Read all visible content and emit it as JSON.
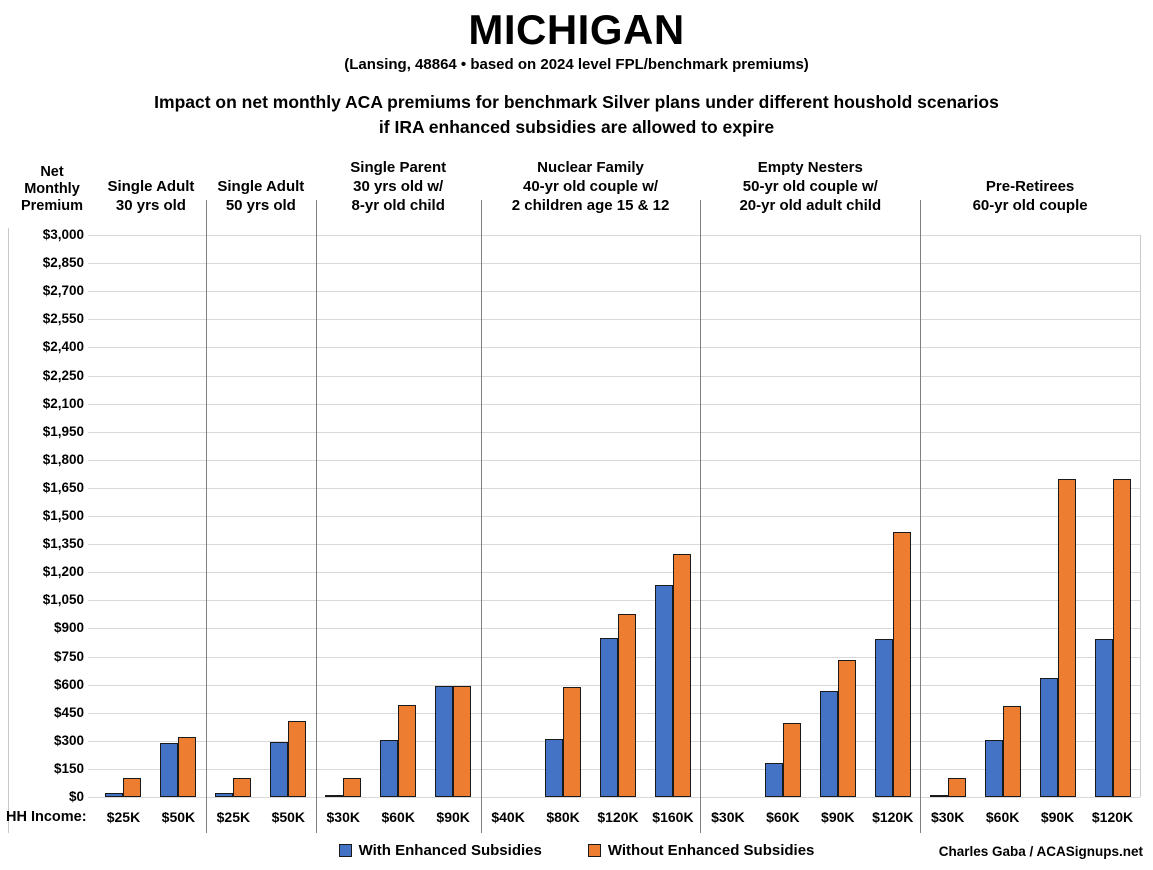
{
  "header": {
    "title": "MICHIGAN",
    "subtitle": "(Lansing, 48864 • based on 2024 level FPL/benchmark premiums)",
    "description_line1": "Impact on net monthly ACA premiums for benchmark Silver plans under different houshold scenarios",
    "description_line2": "if IRA enhanced subsidies are allowed to expire"
  },
  "credit": "Charles Gaba / ACASignups.net",
  "chart_data": {
    "type": "bar",
    "title": "MICHIGAN",
    "subtitle": "(Lansing, 48864 • based on 2024 level FPL/benchmark premiums)",
    "y_axis": {
      "header_lines": [
        "Net",
        "Monthly",
        "Premium"
      ],
      "min": 0,
      "max": 3000,
      "step": 150,
      "tick_prefix": "$",
      "grid": true
    },
    "x_axis_label": "HH Income:",
    "series": [
      {
        "name": "With Enhanced Subsidies",
        "color": "#4472C4"
      },
      {
        "name": "Without Enhanced Subsidies",
        "color": "#ED7D31"
      }
    ],
    "legend_position": "bottom-center",
    "groups": [
      {
        "header_lines": [
          "Single Adult",
          "30 yrs old"
        ],
        "incomes": [
          "$25K",
          "$50K"
        ],
        "with_enhanced": [
          20,
          290
        ],
        "without_enhanced": [
          100,
          320
        ]
      },
      {
        "header_lines": [
          "Single Adult",
          "50 yrs old"
        ],
        "incomes": [
          "$25K",
          "$50K"
        ],
        "with_enhanced": [
          20,
          295
        ],
        "without_enhanced": [
          100,
          405
        ]
      },
      {
        "header_lines": [
          "Single Parent",
          "30 yrs old w/",
          "8-yr old child"
        ],
        "incomes": [
          "$30K",
          "$60K",
          "$90K"
        ],
        "with_enhanced": [
          5,
          305,
          595
        ],
        "without_enhanced": [
          100,
          490,
          595
        ]
      },
      {
        "header_lines": [
          "Nuclear Family",
          "40-yr old couple w/",
          "2 children age 15 & 12"
        ],
        "incomes": [
          "$40K",
          "$80K",
          "$120K",
          "$160K"
        ],
        "with_enhanced": [
          0,
          310,
          850,
          1130
        ],
        "without_enhanced": [
          0,
          585,
          975,
          1295
        ]
      },
      {
        "header_lines": [
          "Empty Nesters",
          "50-yr old couple w/",
          "20-yr old adult child"
        ],
        "incomes": [
          "$30K",
          "$60K",
          "$90K",
          "$120K"
        ],
        "with_enhanced": [
          0,
          180,
          565,
          845
        ],
        "without_enhanced": [
          0,
          395,
          730,
          1415
        ]
      },
      {
        "header_lines": [
          "Pre-Retirees",
          "60-yr old couple"
        ],
        "incomes": [
          "$30K",
          "$60K",
          "$90K",
          "$120K"
        ],
        "with_enhanced": [
          5,
          305,
          635,
          845
        ],
        "without_enhanced": [
          100,
          485,
          1695,
          1695
        ]
      }
    ]
  },
  "colors": {
    "with_enhanced_fill": "#4472C4",
    "without_enhanced_fill": "#ED7D31",
    "bar_border": "#1A1A1A",
    "gridline": "#D9D9D9",
    "group_divider": "#7F7F7F"
  }
}
